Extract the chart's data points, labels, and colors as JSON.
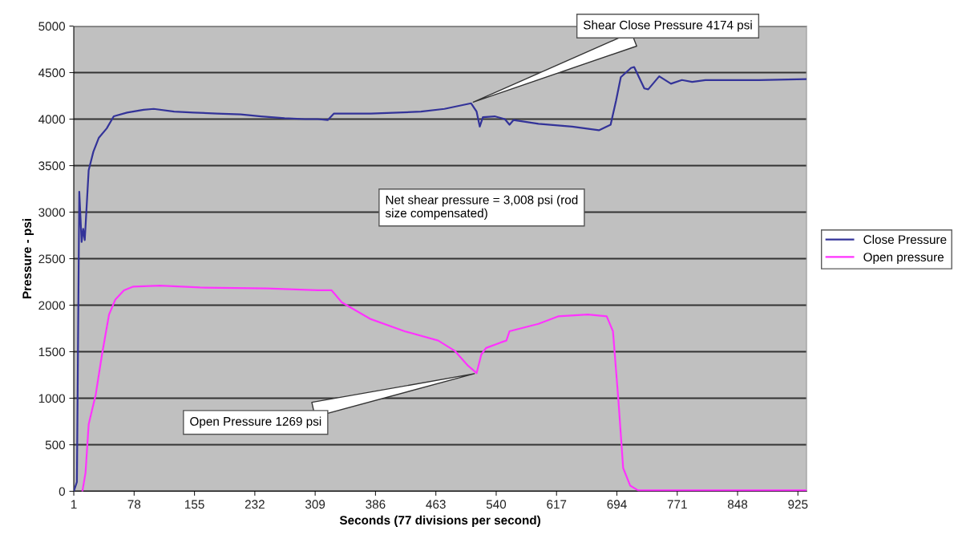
{
  "chart_data": {
    "type": "line",
    "xlabel": "Seconds (77 divisions per second)",
    "ylabel": "Pressure - psi",
    "xlim": [
      1,
      936
    ],
    "xticks": [
      1,
      78,
      155,
      232,
      309,
      386,
      463,
      540,
      617,
      694,
      771,
      848,
      925
    ],
    "ylim": [
      0,
      5000
    ],
    "yticks": [
      0,
      500,
      1000,
      1500,
      2000,
      2500,
      3000,
      3500,
      4000,
      4500,
      5000
    ],
    "grid": "y",
    "legend": "right",
    "marker": "none",
    "line_style": "solid",
    "series": [
      {
        "name": "Close Pressure",
        "color": "#333399",
        "x": [
          1,
          5,
          8,
          11,
          13,
          15,
          20,
          26,
          33,
          43,
          52,
          69,
          90,
          103,
          129,
          154,
          184,
          214,
          240,
          270,
          296,
          312,
          325,
          333,
          380,
          444,
          474,
          508,
          515,
          519,
          523,
          538,
          551,
          557,
          562,
          594,
          637,
          671,
          686,
          693,
          699,
          712,
          716,
          729,
          734,
          748,
          763,
          777,
          790,
          807,
          875,
          935
        ],
        "values": [
          0,
          100,
          3220,
          2680,
          2820,
          2700,
          3450,
          3650,
          3800,
          3900,
          4030,
          4070,
          4100,
          4110,
          4080,
          4070,
          4060,
          4050,
          4030,
          4010,
          4000,
          4000,
          3990,
          4060,
          4060,
          4080,
          4110,
          4170,
          4080,
          3920,
          4020,
          4030,
          4000,
          3940,
          3990,
          3950,
          3920,
          3880,
          3940,
          4200,
          4450,
          4550,
          4560,
          4330,
          4320,
          4460,
          4380,
          4420,
          4400,
          4420,
          4420,
          4430
        ]
      },
      {
        "name": "Open pressure",
        "color": "#ff33ff",
        "x": [
          12,
          16,
          20,
          29,
          37,
          46,
          54,
          65,
          77,
          111,
          162,
          248,
          312,
          330,
          343,
          380,
          423,
          466,
          487,
          504,
          515,
          521,
          527,
          546,
          553,
          557,
          594,
          619,
          657,
          681,
          689,
          696,
          702,
          711,
          721,
          800,
          935
        ],
        "values": [
          0,
          200,
          720,
          1040,
          1470,
          1900,
          2060,
          2160,
          2200,
          2210,
          2190,
          2180,
          2160,
          2160,
          2030,
          1850,
          1720,
          1620,
          1510,
          1350,
          1270,
          1470,
          1540,
          1600,
          1620,
          1720,
          1800,
          1880,
          1900,
          1880,
          1720,
          970,
          250,
          60,
          10,
          10,
          10
        ]
      }
    ],
    "annotations": [
      {
        "text": "Shear Close Pressure 4174 psi",
        "x": 508,
        "y": 4174
      },
      {
        "text": "Open Pressure 1269 psi",
        "x": 515,
        "y": 1269
      },
      "Net shear pressure = 3,008 psi (rod\nsize compensated)"
    ]
  }
}
